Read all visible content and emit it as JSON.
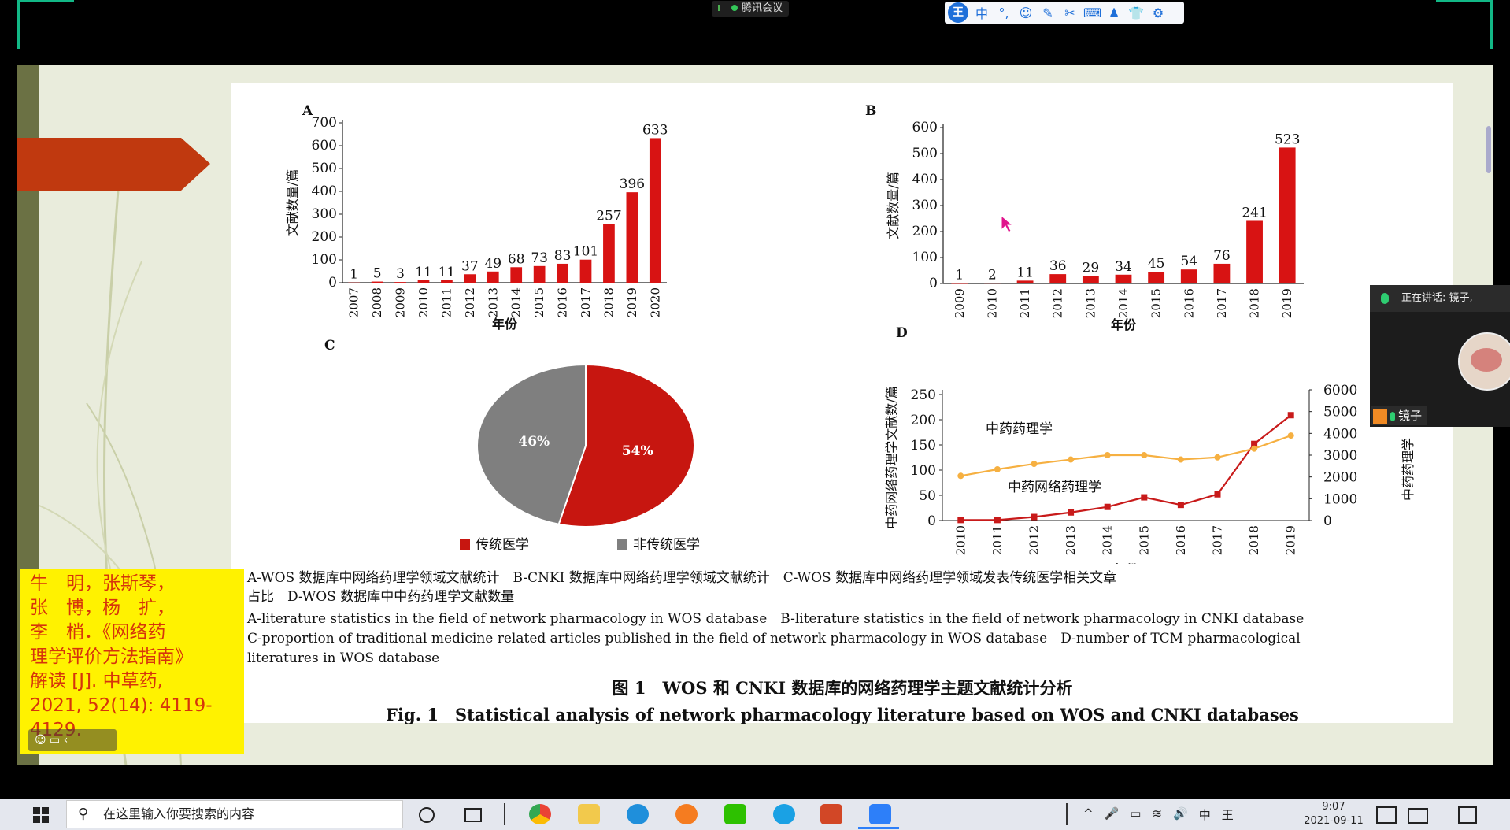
{
  "meeting": {
    "title": "腾讯会议"
  },
  "ime_toolbar": {
    "logo": "王",
    "items": [
      "中",
      "°,",
      "☺",
      "✎",
      "✂",
      "⌨",
      "♟",
      "👕",
      "⚙"
    ]
  },
  "colors": {
    "bar_red": "#d81313",
    "line_red": "#c81a1a",
    "line_orange": "#f6b041",
    "pie_red": "#c71610",
    "pie_gray": "#7f7f7f",
    "citation_bg": "#fff200",
    "citation_text": "#d6340b"
  },
  "figure": {
    "caption_zh_1": "A-WOS 数据库中网络药理学领域文献统计　B-CNKI 数据库中网络药理学领域文献统计　C-WOS 数据库中网络药理学领域发表传统医学相关文章",
    "caption_zh_2": "占比　D-WOS 数据库中中药药理学文献数量",
    "caption_en_1": "A-literature statistics in the field of network pharmacology in WOS database　B-literature statistics in the field of network pharmacology in CNKI database",
    "caption_en_2": "C-proportion of traditional medicine related articles published in the field of network pharmacology in WOS database　D-number of TCM pharmacological",
    "caption_en_3": "literatures in WOS database",
    "title_zh": "图 1　WOS 和 CNKI 数据库的网络药理学主题文献统计分析",
    "title_en": "Fig. 1　Statistical analysis of network pharmacology literature based on WOS and CNKI databases"
  },
  "chart_data": [
    {
      "panel": "A",
      "type": "bar",
      "categories": [
        "2007",
        "2008",
        "2009",
        "2010",
        "2011",
        "2012",
        "2013",
        "2014",
        "2015",
        "2016",
        "2017",
        "2018",
        "2019",
        "2020"
      ],
      "values": [
        1,
        5,
        3,
        11,
        11,
        37,
        49,
        68,
        73,
        83,
        101,
        257,
        396,
        633
      ],
      "xlabel": "年份",
      "ylabel": "文献数量/篇",
      "ylim": [
        0,
        700
      ],
      "yticks": [
        0,
        100,
        200,
        300,
        400,
        500,
        600,
        700
      ]
    },
    {
      "panel": "B",
      "type": "bar",
      "categories": [
        "2009",
        "2010",
        "2011",
        "2012",
        "2013",
        "2014",
        "2015",
        "2016",
        "2017",
        "2018",
        "2019"
      ],
      "values": [
        1,
        2,
        11,
        36,
        29,
        34,
        45,
        54,
        76,
        241,
        523
      ],
      "xlabel": "年份",
      "ylabel": "文献数量/篇",
      "ylim": [
        0,
        600
      ],
      "yticks": [
        0,
        100,
        200,
        300,
        400,
        500,
        600
      ]
    },
    {
      "panel": "C",
      "type": "pie",
      "slices": [
        {
          "name": "传统医学",
          "value": 54,
          "label": "54%"
        },
        {
          "name": "非传统医学",
          "value": 46,
          "label": "46%"
        }
      ]
    },
    {
      "panel": "D",
      "type": "line",
      "x": [
        "2010",
        "2011",
        "2012",
        "2013",
        "2014",
        "2015",
        "2016",
        "2017",
        "2018",
        "2019"
      ],
      "series": [
        {
          "name": "中药网络药理学",
          "axis": "left",
          "values": [
            1,
            1,
            7,
            16,
            27,
            46,
            31,
            52,
            152,
            209
          ]
        },
        {
          "name": "中药药理学",
          "axis": "right",
          "values": [
            2050,
            2350,
            2600,
            2800,
            3000,
            3000,
            2800,
            2900,
            3300,
            3900
          ]
        }
      ],
      "xlabel": "年份",
      "ylabel_left": "中药网络药理学文献数/篇",
      "ylabel_right": "中药药理学",
      "ylim_left": [
        0,
        250
      ],
      "ylim_right": [
        0,
        6000
      ],
      "yticks_left": [
        0,
        50,
        100,
        150,
        200,
        250
      ],
      "yticks_right": [
        0,
        1000,
        2000,
        3000,
        4000,
        5000,
        6000
      ]
    }
  ],
  "citation": {
    "lines": [
      "牛　明，张斯琴，",
      "张　博，杨　扩，",
      "李　梢．《网络药",
      "理学评价方法指南》",
      "解读 [J]. 中草药,",
      "2021, 52(14): 4119-",
      "4129."
    ]
  },
  "mini_tools": {
    "label": "☺ ▭ ‹"
  },
  "speaker": {
    "header": "正在讲话: 镜子,",
    "name": "镜子"
  },
  "taskbar": {
    "search_placeholder": "在这里输入你要搜索的内容",
    "time": "9:07",
    "date": "2021-09-11",
    "tray": [
      "^",
      "🎤",
      "▭",
      "≋",
      "🔊",
      "中",
      "王"
    ]
  }
}
